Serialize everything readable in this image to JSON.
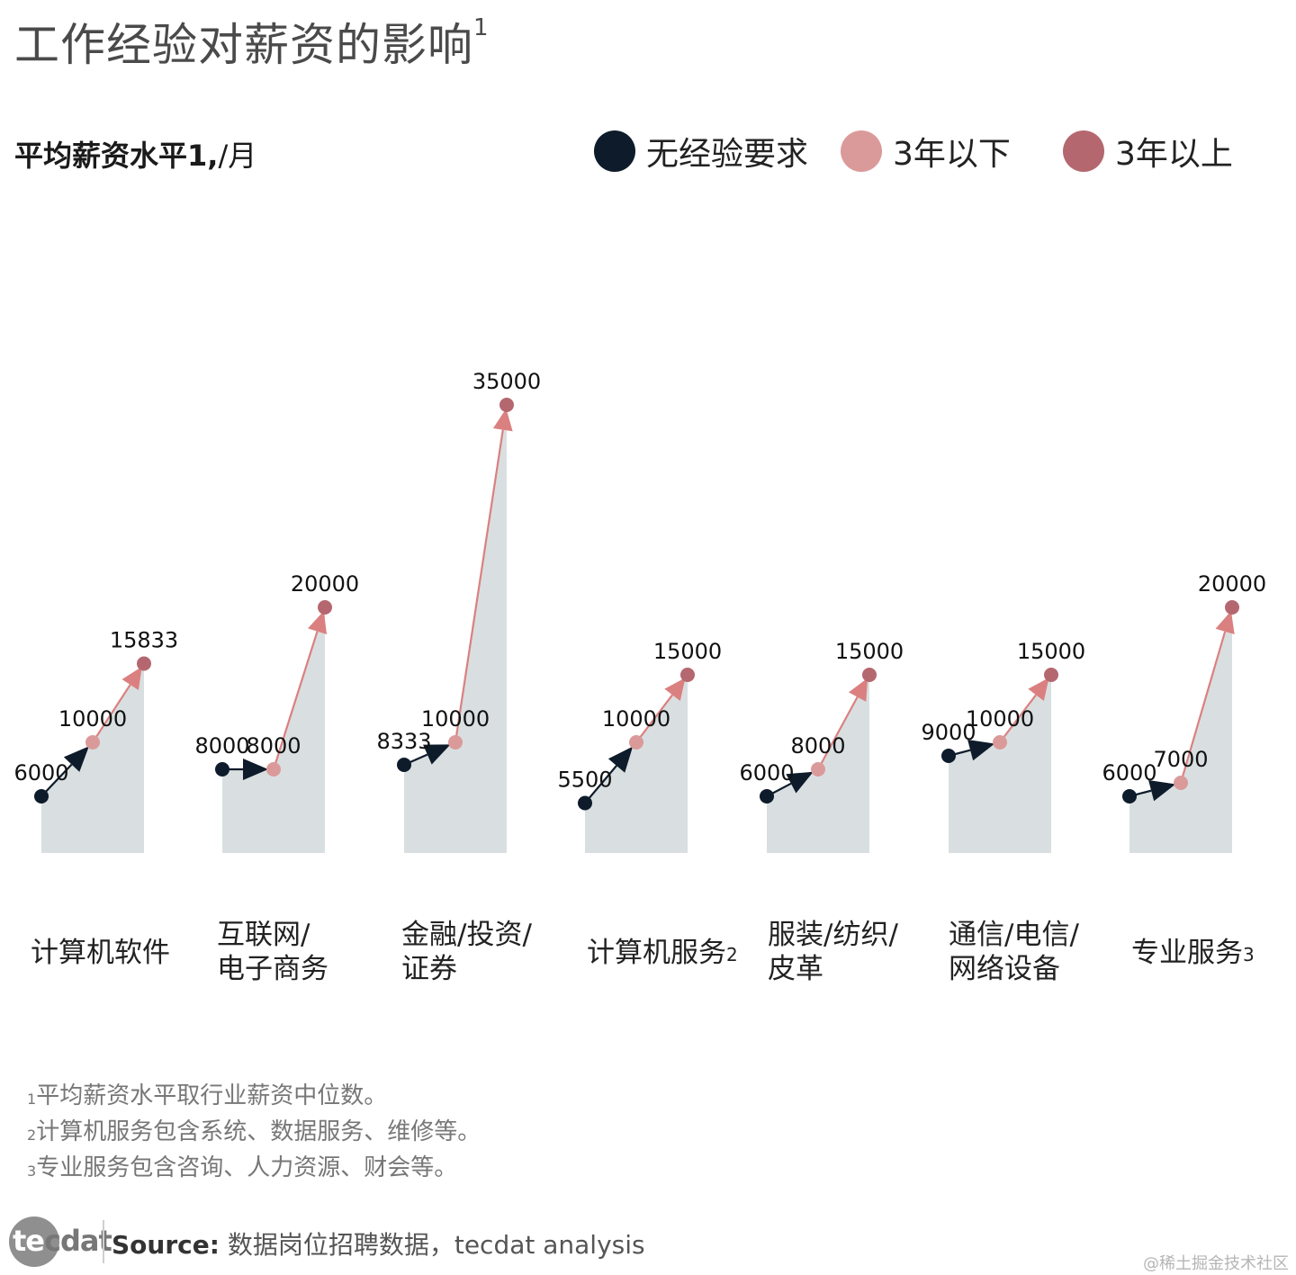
{
  "title": "工作经验对薪资的影响",
  "title_sup": "1",
  "subtitle": "平均薪资水平1,",
  "subtitle_unit": "/月",
  "legend": [
    {
      "label": "无经验要求",
      "color": "#0d1b2a"
    },
    {
      "label": "3年以下",
      "color": "#db9a9a"
    },
    {
      "label": "3年以上",
      "color": "#b5676f"
    }
  ],
  "chart_data": {
    "type": "line",
    "categories": [
      {
        "line1": "计算机软件",
        "line2": "",
        "sup": ""
      },
      {
        "line1": "互联网/",
        "line2": "电子商务",
        "sup": ""
      },
      {
        "line1": "金融/投资/",
        "line2": "证券",
        "sup": ""
      },
      {
        "line1": "计算机服务",
        "line2": "",
        "sup": "2"
      },
      {
        "line1": "服装/纺织/",
        "line2": "皮革",
        "sup": ""
      },
      {
        "line1": "通信/电信/",
        "line2": "网络设备",
        "sup": ""
      },
      {
        "line1": "专业服务",
        "line2": "",
        "sup": "3"
      }
    ],
    "series": [
      {
        "name": "无经验要求",
        "values": [
          6000,
          8000,
          8333,
          5500,
          6000,
          9000,
          6000
        ]
      },
      {
        "name": "3年以下",
        "values": [
          10000,
          8000,
          10000,
          10000,
          8000,
          10000,
          7000
        ]
      },
      {
        "name": "3年以上",
        "values": [
          15833,
          20000,
          35000,
          15000,
          15000,
          15000,
          20000
        ]
      }
    ],
    "colors": {
      "area": "#d9dfe0",
      "arrow1": "#0d1b2a",
      "arrow2": "#db8080"
    }
  },
  "notes": [
    {
      "sup": "1",
      "text": "平均薪资水平取行业薪资中位数。"
    },
    {
      "sup": "2",
      "text": "计算机服务包含系统、数据服务、维修等。"
    },
    {
      "sup": "3",
      "text": "专业服务包含咨询、人力资源、财会等。"
    }
  ],
  "footer": {
    "logo_a": "te",
    "logo_b": "cdat",
    "source_label": "Source:",
    "source_text": " 数据岗位招聘数据，tecdat analysis"
  },
  "watermark": "@稀土掘金技术社区"
}
